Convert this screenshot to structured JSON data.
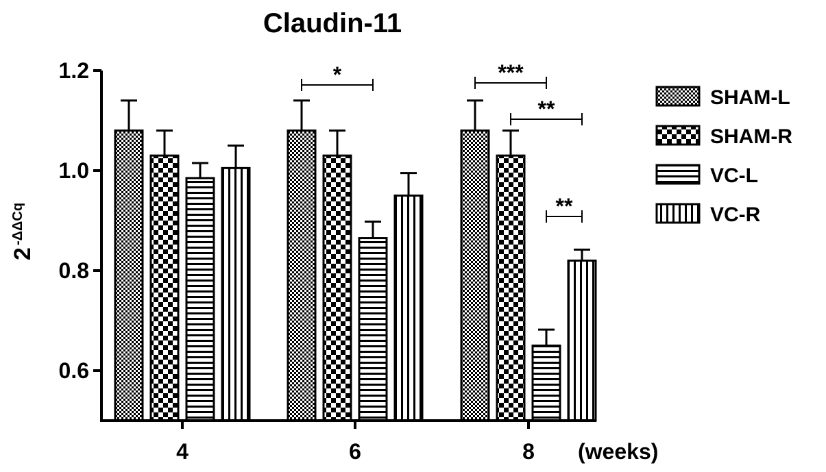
{
  "chart_data": {
    "type": "bar",
    "title": "Claudin-11",
    "ylabel": "2",
    "ylabel_superscript": "-ΔΔCq",
    "xlabel": "(weeks)",
    "categories": [
      "4",
      "6",
      "8"
    ],
    "ylim": [
      0.5,
      1.2
    ],
    "yticks": [
      "0.6",
      "0.8",
      "1.0",
      "1.2"
    ],
    "ytick_values": [
      0.6,
      0.8,
      1.0,
      1.2
    ],
    "legend_position": "right",
    "series": [
      {
        "name": "SHAM-L",
        "values": [
          1.08,
          1.08,
          1.08
        ],
        "errors": [
          0.06,
          0.06,
          0.06
        ],
        "pattern": "dots"
      },
      {
        "name": "SHAM-R",
        "values": [
          1.03,
          1.03,
          1.03
        ],
        "errors": [
          0.05,
          0.05,
          0.05
        ],
        "pattern": "checker"
      },
      {
        "name": "VC-L",
        "values": [
          0.985,
          0.865,
          0.65
        ],
        "errors": [
          0.03,
          0.033,
          0.032
        ],
        "pattern": "horizontal"
      },
      {
        "name": "VC-R",
        "values": [
          1.005,
          0.95,
          0.82
        ],
        "errors": [
          0.045,
          0.045,
          0.022
        ],
        "pattern": "vertical"
      }
    ],
    "significance": [
      {
        "label": "*",
        "category": 1,
        "from_series": 0,
        "to_series": 2
      },
      {
        "label": "***",
        "category": 2,
        "from_series": 0,
        "to_series": 2
      },
      {
        "label": "**",
        "category": 2,
        "from_series": 1,
        "to_series": 3
      },
      {
        "label": "**",
        "category": 2,
        "from_series": 2,
        "to_series": 3
      }
    ]
  }
}
